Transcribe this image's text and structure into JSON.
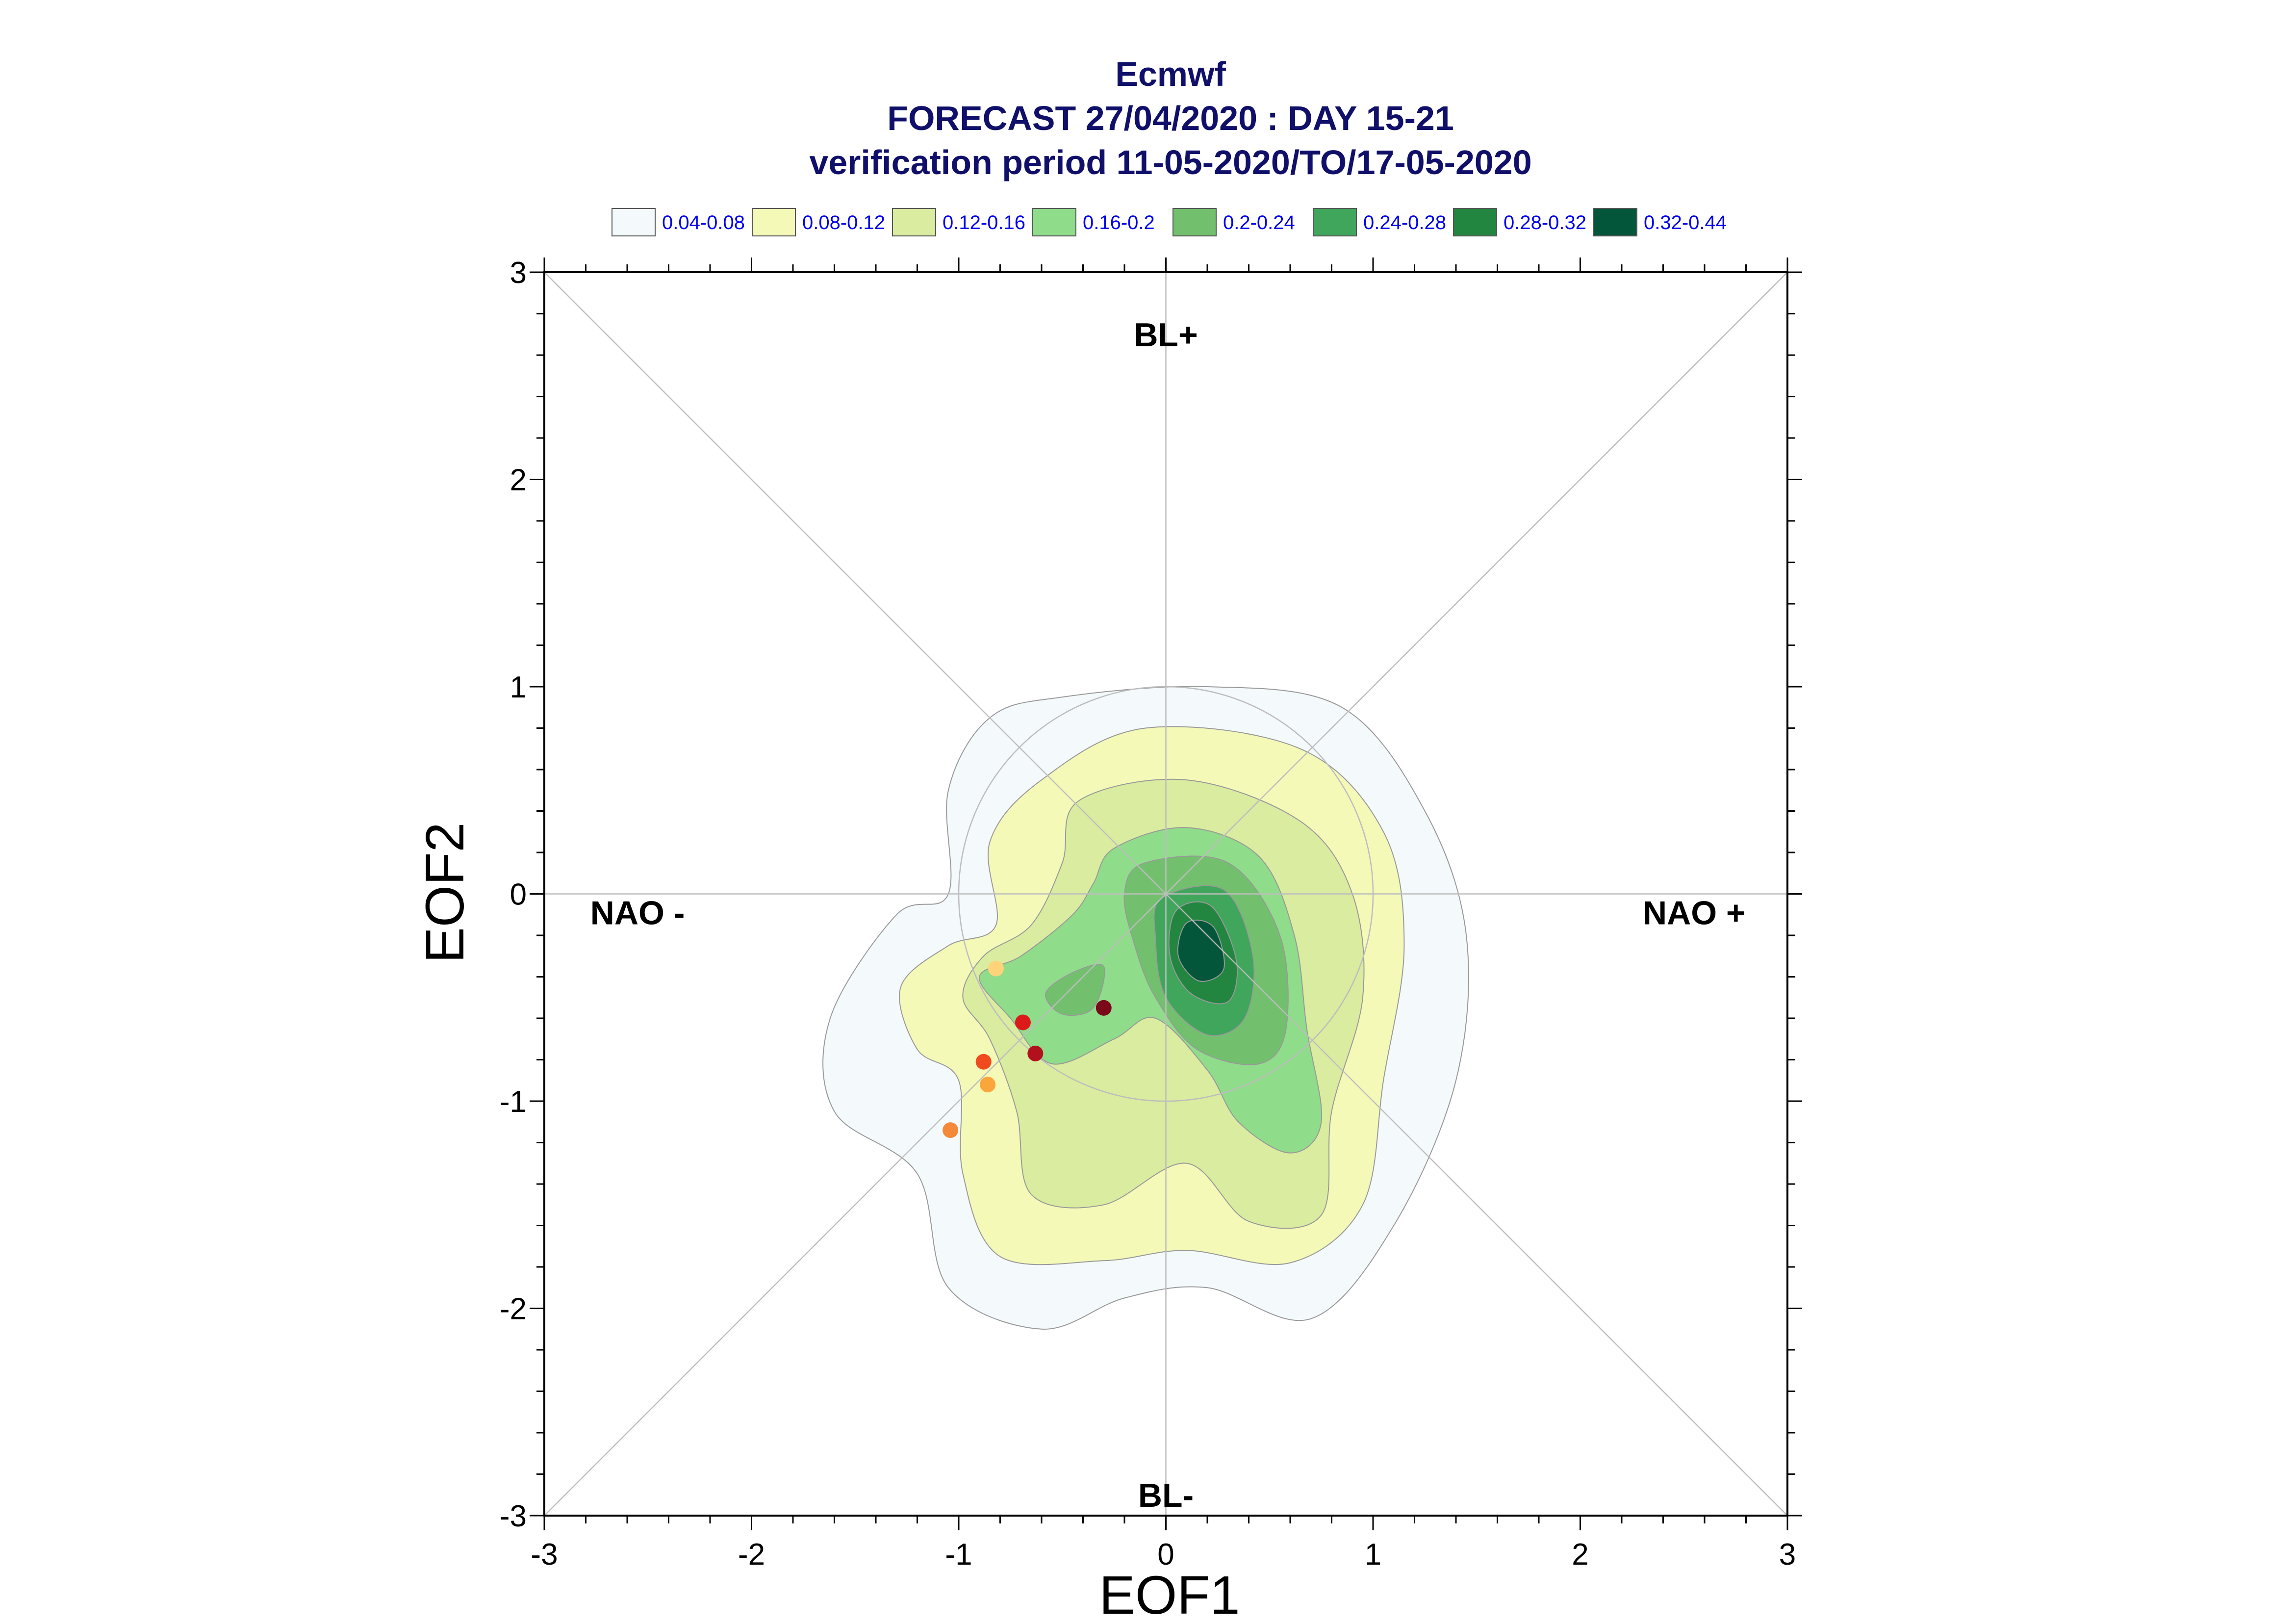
{
  "chart_data": {
    "type": "contour-scatter",
    "title_lines": [
      "Ecmwf",
      "FORECAST 27/04/2020 : DAY 15-21",
      "verification period 11-05-2020/TO/17-05-2020"
    ],
    "xlabel": "EOF1",
    "ylabel": "EOF2",
    "xlim": [
      -3,
      3
    ],
    "ylim": [
      -3,
      3
    ],
    "xticks": [
      -3,
      -2,
      -1,
      0,
      1,
      2,
      3
    ],
    "yticks": [
      -3,
      -2,
      -1,
      0,
      1,
      2,
      3
    ],
    "legend_position": "top",
    "legend": [
      {
        "label": "0.04-0.08",
        "color": "#f4f9fc"
      },
      {
        "label": "0.08-0.12",
        "color": "#f5f9b8"
      },
      {
        "label": "0.12-0.16",
        "color": "#d9ec9f"
      },
      {
        "label": "0.16-0.2",
        "color": "#8fdc8a"
      },
      {
        "label": "0.2-0.24",
        "color": "#72c06e"
      },
      {
        "label": "0.24-0.28",
        "color": "#3fa65c"
      },
      {
        "label": "0.28-0.32",
        "color": "#228540"
      },
      {
        "label": "0.32-0.44",
        "color": "#03563a"
      }
    ],
    "regimes": [
      {
        "label": "BL+",
        "x": 0,
        "y": 2.7
      },
      {
        "label": "BL-",
        "x": 0,
        "y": -2.9
      },
      {
        "label": "NAO -",
        "x": -2.55,
        "y": -0.09
      },
      {
        "label": "NAO +",
        "x": 2.55,
        "y": -0.09
      }
    ],
    "reference_circle_radius": 1,
    "points": [
      {
        "x": -0.82,
        "y": -0.36,
        "color": "#ffd37a"
      },
      {
        "x": -0.69,
        "y": -0.62,
        "color": "#dd1a1a"
      },
      {
        "x": -0.3,
        "y": -0.55,
        "color": "#7a0a1a"
      },
      {
        "x": -0.63,
        "y": -0.77,
        "color": "#b3101e"
      },
      {
        "x": -0.88,
        "y": -0.81,
        "color": "#f04a1e"
      },
      {
        "x": -0.86,
        "y": -0.92,
        "color": "#fba63c"
      },
      {
        "x": -1.04,
        "y": -1.14,
        "color": "#f5893a"
      }
    ],
    "contours": [
      {
        "level": "0.04-0.08",
        "points": [
          [
            -0.5,
            0.95
          ],
          [
            0.2,
            1.0
          ],
          [
            0.85,
            0.9
          ],
          [
            1.25,
            0.4
          ],
          [
            1.45,
            -0.2
          ],
          [
            1.4,
            -0.9
          ],
          [
            1.1,
            -1.6
          ],
          [
            0.7,
            -2.05
          ],
          [
            0.2,
            -1.9
          ],
          [
            -0.2,
            -1.95
          ],
          [
            -0.6,
            -2.1
          ],
          [
            -1.05,
            -1.9
          ],
          [
            -1.2,
            -1.35
          ],
          [
            -1.6,
            -1.05
          ],
          [
            -1.62,
            -0.6
          ],
          [
            -1.3,
            -0.1
          ],
          [
            -1.05,
            0.0
          ],
          [
            -1.05,
            0.5
          ],
          [
            -0.85,
            0.85
          ]
        ]
      },
      {
        "level": "0.08-0.12",
        "points": [
          [
            -0.6,
            0.55
          ],
          [
            -0.1,
            0.8
          ],
          [
            0.65,
            0.7
          ],
          [
            1.05,
            0.3
          ],
          [
            1.15,
            -0.25
          ],
          [
            1.05,
            -0.9
          ],
          [
            0.95,
            -1.5
          ],
          [
            0.6,
            -1.78
          ],
          [
            0.1,
            -1.72
          ],
          [
            -0.3,
            -1.77
          ],
          [
            -0.8,
            -1.75
          ],
          [
            -0.98,
            -1.35
          ],
          [
            -1.0,
            -0.9
          ],
          [
            -1.2,
            -0.75
          ],
          [
            -1.28,
            -0.45
          ],
          [
            -1.05,
            -0.25
          ],
          [
            -0.82,
            -0.15
          ],
          [
            -0.85,
            0.25
          ]
        ]
      },
      {
        "level": "0.12-0.16",
        "points": [
          [
            -0.42,
            0.45
          ],
          [
            0.1,
            0.55
          ],
          [
            0.65,
            0.35
          ],
          [
            0.9,
            0.0
          ],
          [
            0.95,
            -0.5
          ],
          [
            0.8,
            -1.05
          ],
          [
            0.75,
            -1.55
          ],
          [
            0.4,
            -1.58
          ],
          [
            0.1,
            -1.3
          ],
          [
            -0.3,
            -1.5
          ],
          [
            -0.65,
            -1.45
          ],
          [
            -0.72,
            -1.05
          ],
          [
            -0.85,
            -0.7
          ],
          [
            -0.98,
            -0.5
          ],
          [
            -0.88,
            -0.3
          ],
          [
            -0.65,
            -0.15
          ],
          [
            -0.5,
            0.15
          ]
        ]
      },
      {
        "level": "0.16-0.2",
        "points": [
          [
            -0.25,
            0.22
          ],
          [
            0.1,
            0.32
          ],
          [
            0.45,
            0.18
          ],
          [
            0.62,
            -0.2
          ],
          [
            0.68,
            -0.65
          ],
          [
            0.75,
            -1.1
          ],
          [
            0.6,
            -1.25
          ],
          [
            0.35,
            -1.1
          ],
          [
            0.2,
            -0.85
          ],
          [
            -0.05,
            -0.6
          ],
          [
            -0.25,
            -0.7
          ],
          [
            -0.55,
            -0.82
          ],
          [
            -0.75,
            -0.6
          ],
          [
            -0.9,
            -0.4
          ],
          [
            -0.7,
            -0.3
          ],
          [
            -0.45,
            -0.1
          ],
          [
            -0.35,
            0.05
          ]
        ]
      },
      {
        "level": "0.2-0.24",
        "points": [
          [
            -0.1,
            0.15
          ],
          [
            0.3,
            0.15
          ],
          [
            0.55,
            -0.2
          ],
          [
            0.58,
            -0.65
          ],
          [
            0.45,
            -0.82
          ],
          [
            0.15,
            -0.75
          ],
          [
            -0.05,
            -0.5
          ],
          [
            -0.15,
            -0.25
          ],
          [
            -0.2,
            0.0
          ]
        ]
      },
      {
        "level": "0.2-0.24",
        "points": [
          [
            -0.45,
            -0.38
          ],
          [
            -0.3,
            -0.35
          ],
          [
            -0.35,
            -0.55
          ],
          [
            -0.5,
            -0.58
          ],
          [
            -0.58,
            -0.48
          ]
        ]
      },
      {
        "level": "0.24-0.28",
        "points": [
          [
            -0.02,
            -0.02
          ],
          [
            0.28,
            0.02
          ],
          [
            0.42,
            -0.3
          ],
          [
            0.38,
            -0.6
          ],
          [
            0.2,
            -0.68
          ],
          [
            0.0,
            -0.5
          ],
          [
            -0.05,
            -0.22
          ]
        ]
      },
      {
        "level": "0.28-0.32",
        "points": [
          [
            0.05,
            -0.08
          ],
          [
            0.22,
            -0.06
          ],
          [
            0.34,
            -0.32
          ],
          [
            0.3,
            -0.52
          ],
          [
            0.12,
            -0.48
          ],
          [
            0.02,
            -0.3
          ]
        ]
      },
      {
        "level": "0.32-0.44",
        "points": [
          [
            0.1,
            -0.14
          ],
          [
            0.23,
            -0.16
          ],
          [
            0.28,
            -0.36
          ],
          [
            0.16,
            -0.42
          ],
          [
            0.06,
            -0.3
          ]
        ]
      }
    ]
  }
}
